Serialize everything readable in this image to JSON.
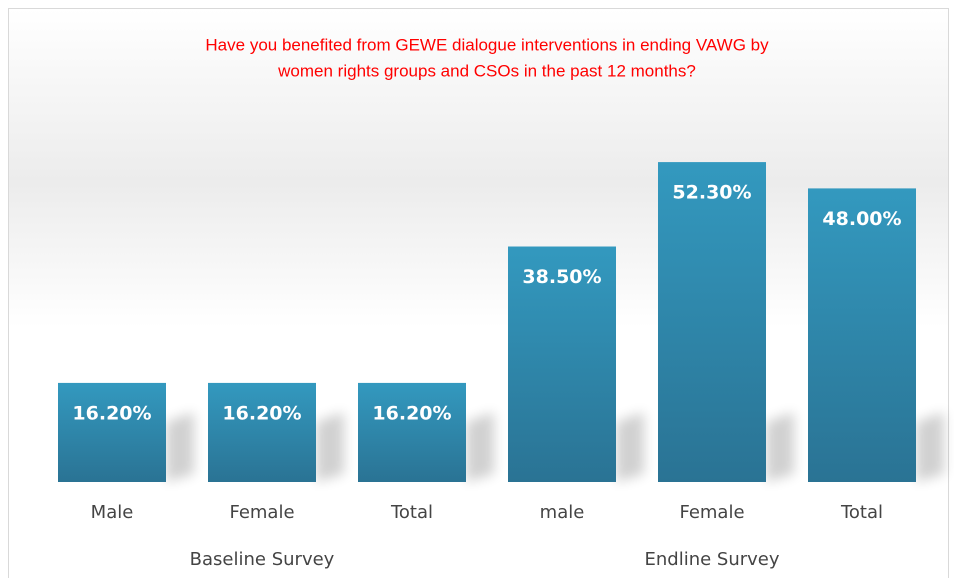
{
  "chart_data": {
    "type": "bar",
    "title": [
      "Have you benefited from GEWE dialogue interventions in ending VAWG by",
      "women rights groups and CSOs in the past 12 months?"
    ],
    "groups": [
      {
        "name": "Baseline Survey",
        "categories": [
          "Male",
          "Female",
          "Total"
        ],
        "values": [
          16.2,
          16.2,
          16.2
        ],
        "value_labels": [
          "16.20%",
          "16.20%",
          "16.20%"
        ]
      },
      {
        "name": "Endline Survey",
        "categories": [
          "male",
          "Female",
          "Total"
        ],
        "values": [
          38.5,
          52.3,
          48.0
        ],
        "value_labels": [
          "38.50%",
          "52.30%",
          "48.00%"
        ]
      }
    ],
    "color": "#2f90b6",
    "ylim": [
      0,
      60
    ]
  }
}
